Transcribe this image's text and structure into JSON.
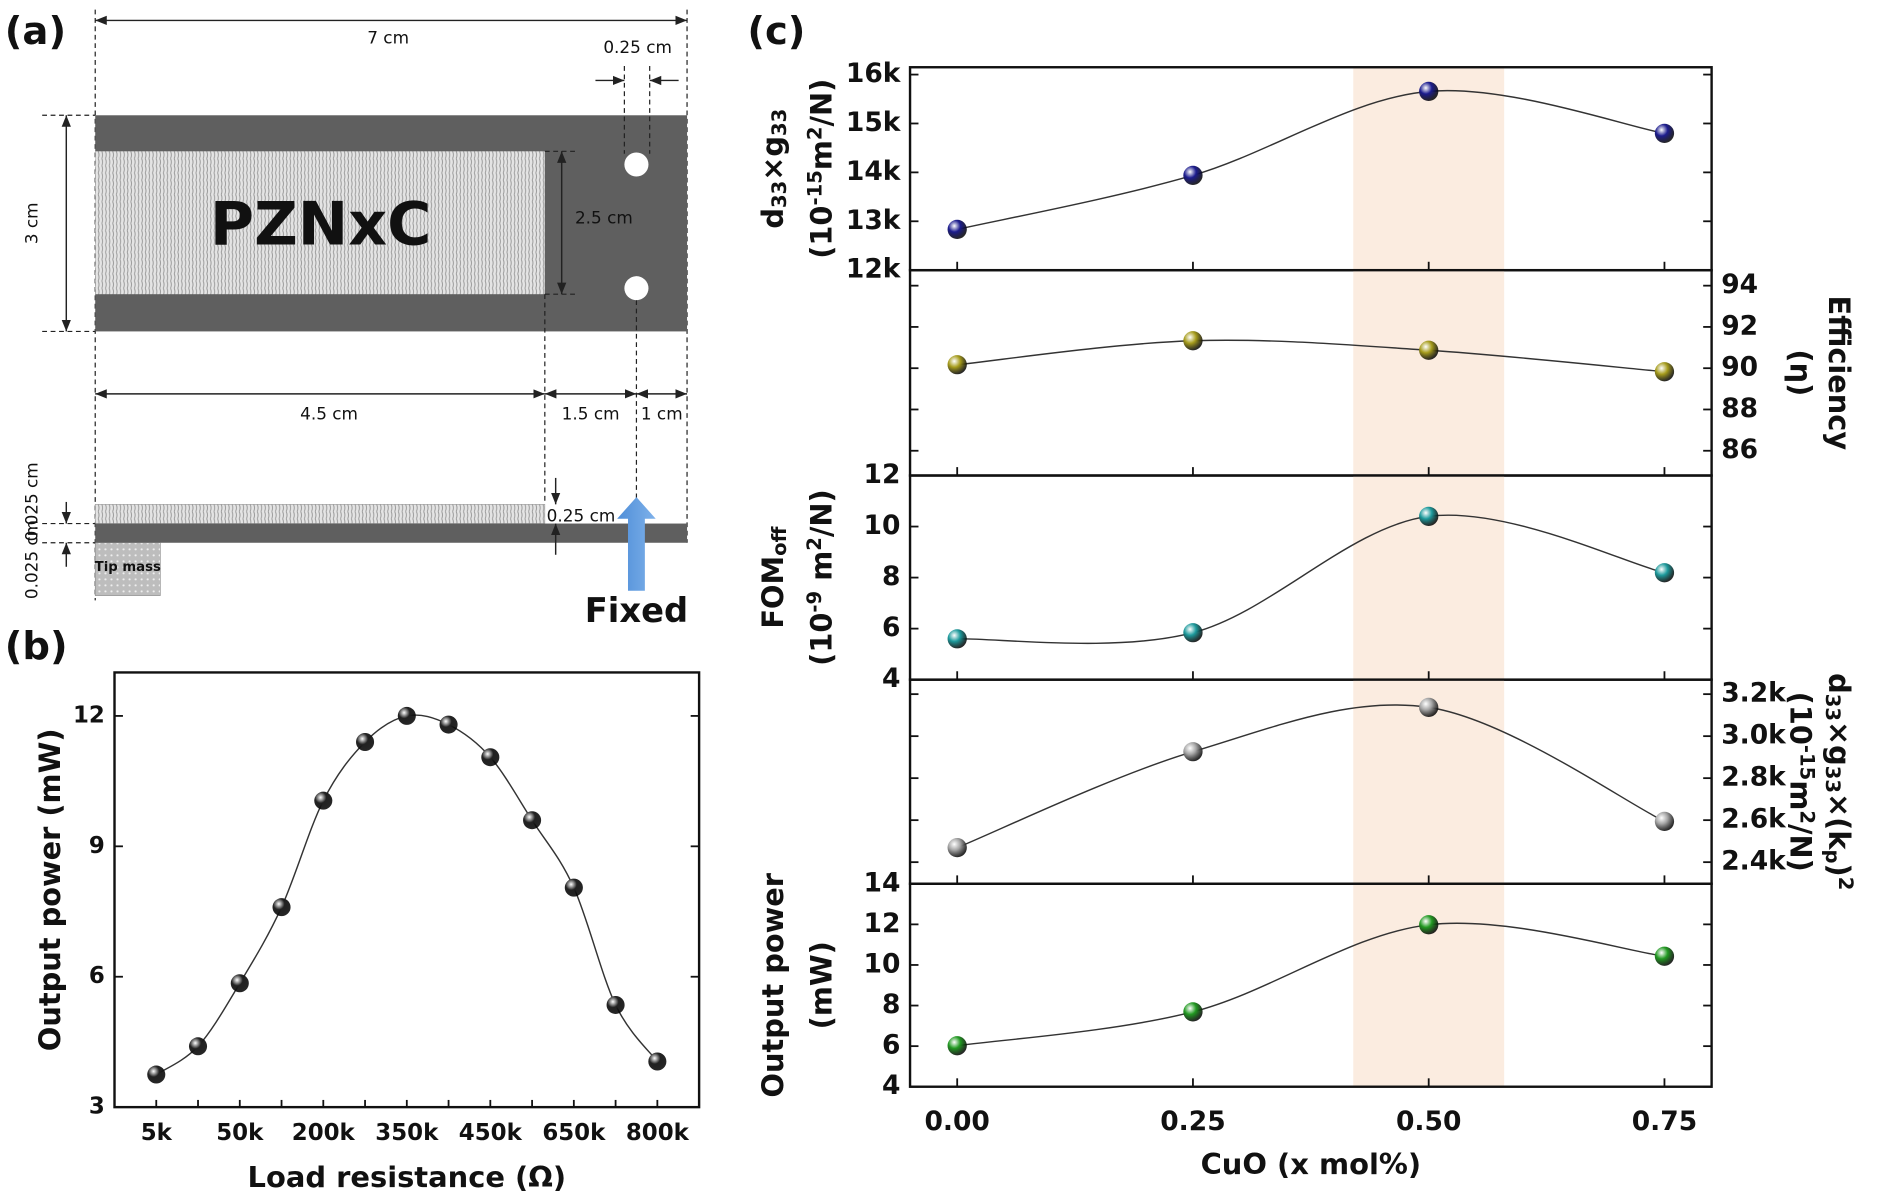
{
  "panel_labels": [
    "(a)",
    "(b)",
    "(c)"
  ],
  "diagram": {
    "width_label": "7 cm",
    "hole_offset_label": "0.25 cm",
    "height_label": "3 cm",
    "material": "PZNxC",
    "active_height_label": "2.5 cm",
    "active_length_label": "4.5 cm",
    "gap_label": "1.5 cm",
    "end_label": "1 cm",
    "layer_labels": [
      "0.025 cm",
      "0.025 cm"
    ],
    "side_offset_label": "0.25 cm",
    "tip_mass": "Tip mass",
    "fixed": "Fixed"
  },
  "chart_data": [
    {
      "type": "line",
      "ylabel": "Output power (mW)",
      "xlabel": "Load resistance (Ω)",
      "categories": [
        "5k",
        null,
        "50k",
        null,
        "200k",
        null,
        "350k",
        null,
        "450k",
        null,
        "650k",
        null,
        "800k"
      ],
      "values": [
        3.75,
        4.4,
        5.85,
        7.6,
        10.05,
        11.4,
        12.0,
        11.8,
        11.05,
        9.6,
        8.05,
        5.35,
        4.05
      ],
      "ylim": [
        3,
        13
      ],
      "yticks": [
        3,
        6,
        9,
        12
      ],
      "color": "#222222"
    },
    {
      "type": "line",
      "x": [
        0,
        0.25,
        0.5,
        0.75
      ],
      "values": [
        12834,
        13939,
        15656,
        14798
      ],
      "color": "#1c1c8e",
      "xlim": [
        -0.05,
        0.8
      ],
      "ylim": [
        12000,
        16150
      ],
      "yticks": [
        {
          "value": 12000,
          "label": "12k"
        },
        {
          "value": 13000,
          "label": "13k"
        },
        {
          "value": 14000,
          "label": "14k"
        },
        {
          "value": 15000,
          "label": "15k"
        },
        {
          "value": 16000,
          "label": "16k"
        }
      ],
      "axis_side": "left",
      "shaded_range": [
        0.42,
        0.58
      ],
      "ylabel": [
        [
          "d",
          {
            "sub": "33"
          },
          "×g",
          {
            "sub": "33"
          }
        ],
        [
          "(10",
          {
            "sup": "-15"
          },
          "m",
          {
            "sup": "2"
          },
          "/N)"
        ]
      ]
    },
    {
      "type": "line",
      "x": [
        0,
        0.25,
        0.5,
        0.75
      ],
      "values": [
        90.17,
        91.33,
        90.87,
        89.83
      ],
      "color": "#a69c1c",
      "xlim": [
        -0.05,
        0.8
      ],
      "ylim": [
        84.8,
        94.75
      ],
      "yticks": [
        86,
        88,
        90,
        92,
        94
      ],
      "axis_side": "right",
      "shaded_range": [
        0.42,
        0.58
      ],
      "ylabel": [
        [
          "Efficiency"
        ],
        [
          "(η)"
        ]
      ]
    },
    {
      "type": "line",
      "x": [
        0,
        0.25,
        0.5,
        0.75
      ],
      "values": [
        5.6,
        5.84,
        10.4,
        8.19
      ],
      "color": "#1d9a9c",
      "xlim": [
        -0.05,
        0.8
      ],
      "ylim": [
        4,
        12
      ],
      "yticks": [
        4,
        6,
        8,
        10,
        12
      ],
      "axis_side": "left",
      "shaded_range": [
        0.42,
        0.58
      ],
      "ylabel": [
        [
          "FOM",
          {
            "sub": "off"
          }
        ],
        [
          "(10",
          {
            "sup": "-9"
          },
          " m",
          {
            "sup": "2"
          },
          "/N)"
        ]
      ]
    },
    {
      "type": "line",
      "x": [
        0,
        0.25,
        0.5,
        0.75
      ],
      "values": [
        2469,
        2926,
        3137,
        2594
      ],
      "color": "#a5a5a5",
      "xlim": [
        -0.05,
        0.8
      ],
      "ylim": [
        2297,
        3269
      ],
      "yticks": [
        {
          "value": 2400,
          "label": "2.4k"
        },
        {
          "value": 2600,
          "label": "2.6k"
        },
        {
          "value": 2800,
          "label": "2.8k"
        },
        {
          "value": 3000,
          "label": "3.0k"
        },
        {
          "value": 3200,
          "label": "3.2k"
        }
      ],
      "axis_side": "right",
      "shaded_range": [
        0.42,
        0.58
      ],
      "ylabel": [
        [
          "d",
          {
            "sub": "33"
          },
          "×g",
          {
            "sub": "33"
          },
          "×(k",
          {
            "sub": "p"
          },
          ")",
          {
            "sup": "2"
          }
        ],
        [
          "(10",
          {
            "sup": "-15"
          },
          "m",
          {
            "sup": "2"
          },
          "/N)"
        ]
      ]
    },
    {
      "type": "line",
      "x": [
        0,
        0.25,
        0.5,
        0.75
      ],
      "values": [
        6.02,
        7.69,
        11.98,
        10.43
      ],
      "color": "#229a22",
      "xlim": [
        -0.05,
        0.8
      ],
      "ylim": [
        4,
        14
      ],
      "yticks": [
        4,
        6,
        8,
        10,
        12,
        14
      ],
      "xticks": [
        {
          "value": 0,
          "label": "0.00"
        },
        {
          "value": 0.25,
          "label": "0.25"
        },
        {
          "value": 0.5,
          "label": "0.50"
        },
        {
          "value": 0.75,
          "label": "0.75"
        }
      ],
      "xlabel": "CuO (x mol%)",
      "axis_side": "left",
      "shaded_range": [
        0.42,
        0.58
      ],
      "ylabel": [
        [
          "Output power"
        ],
        [
          "(mW)"
        ]
      ]
    }
  ]
}
